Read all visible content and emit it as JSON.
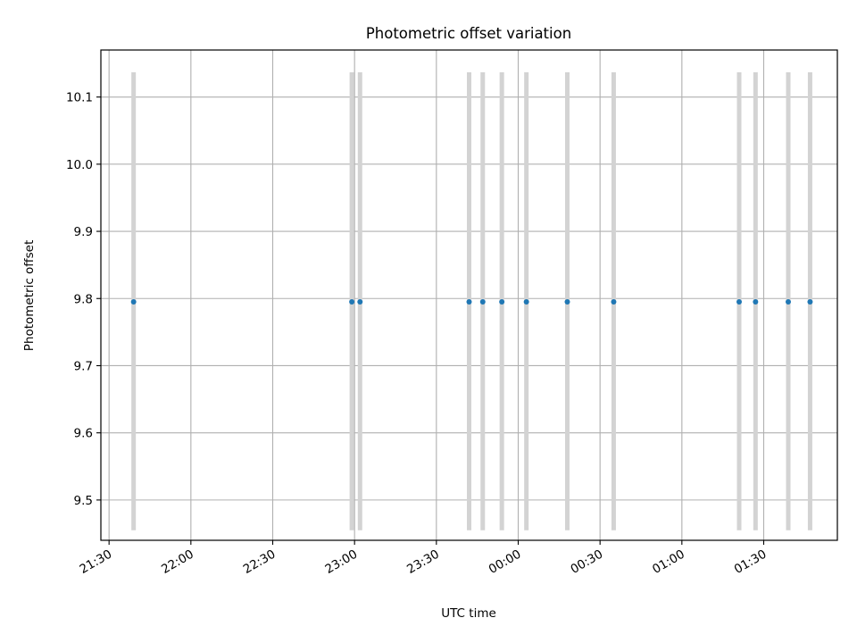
{
  "chart_data": {
    "type": "scatter",
    "title": "Photometric offset variation",
    "xlabel": "UTC time",
    "ylabel": "Photometric offset",
    "x_ticks": [
      "21:30",
      "22:00",
      "22:30",
      "23:00",
      "23:30",
      "00:00",
      "00:30",
      "01:00",
      "01:30"
    ],
    "y_ticks": [
      "9.5",
      "9.6",
      "9.7",
      "9.8",
      "9.9",
      "10.0",
      "10.1"
    ],
    "ylim": [
      9.44,
      10.17
    ],
    "xlim": [
      "21:27",
      "01:57"
    ],
    "grid": true,
    "series": [
      {
        "x": [
          "21:39",
          "22:59",
          "23:02",
          "23:42",
          "23:47",
          "23:54",
          "00:03",
          "00:18",
          "00:35",
          "01:21",
          "01:27",
          "01:39",
          "01:47"
        ],
        "y": [
          9.795,
          9.795,
          9.795,
          9.795,
          9.795,
          9.795,
          9.795,
          9.795,
          9.795,
          9.795,
          9.795,
          9.795,
          9.795
        ],
        "error_low": [
          9.455,
          9.455,
          9.455,
          9.455,
          9.455,
          9.455,
          9.455,
          9.455,
          9.455,
          9.455,
          9.455,
          9.455,
          9.455
        ],
        "error_high": [
          10.137,
          10.137,
          10.137,
          10.137,
          10.137,
          10.137,
          10.137,
          10.137,
          10.137,
          10.137,
          10.137,
          10.137,
          10.137
        ]
      }
    ],
    "colors": {
      "point": "#1f77b4",
      "errorbar": "#d3d3d3",
      "grid": "#b0b0b0",
      "axis": "#000000"
    }
  }
}
